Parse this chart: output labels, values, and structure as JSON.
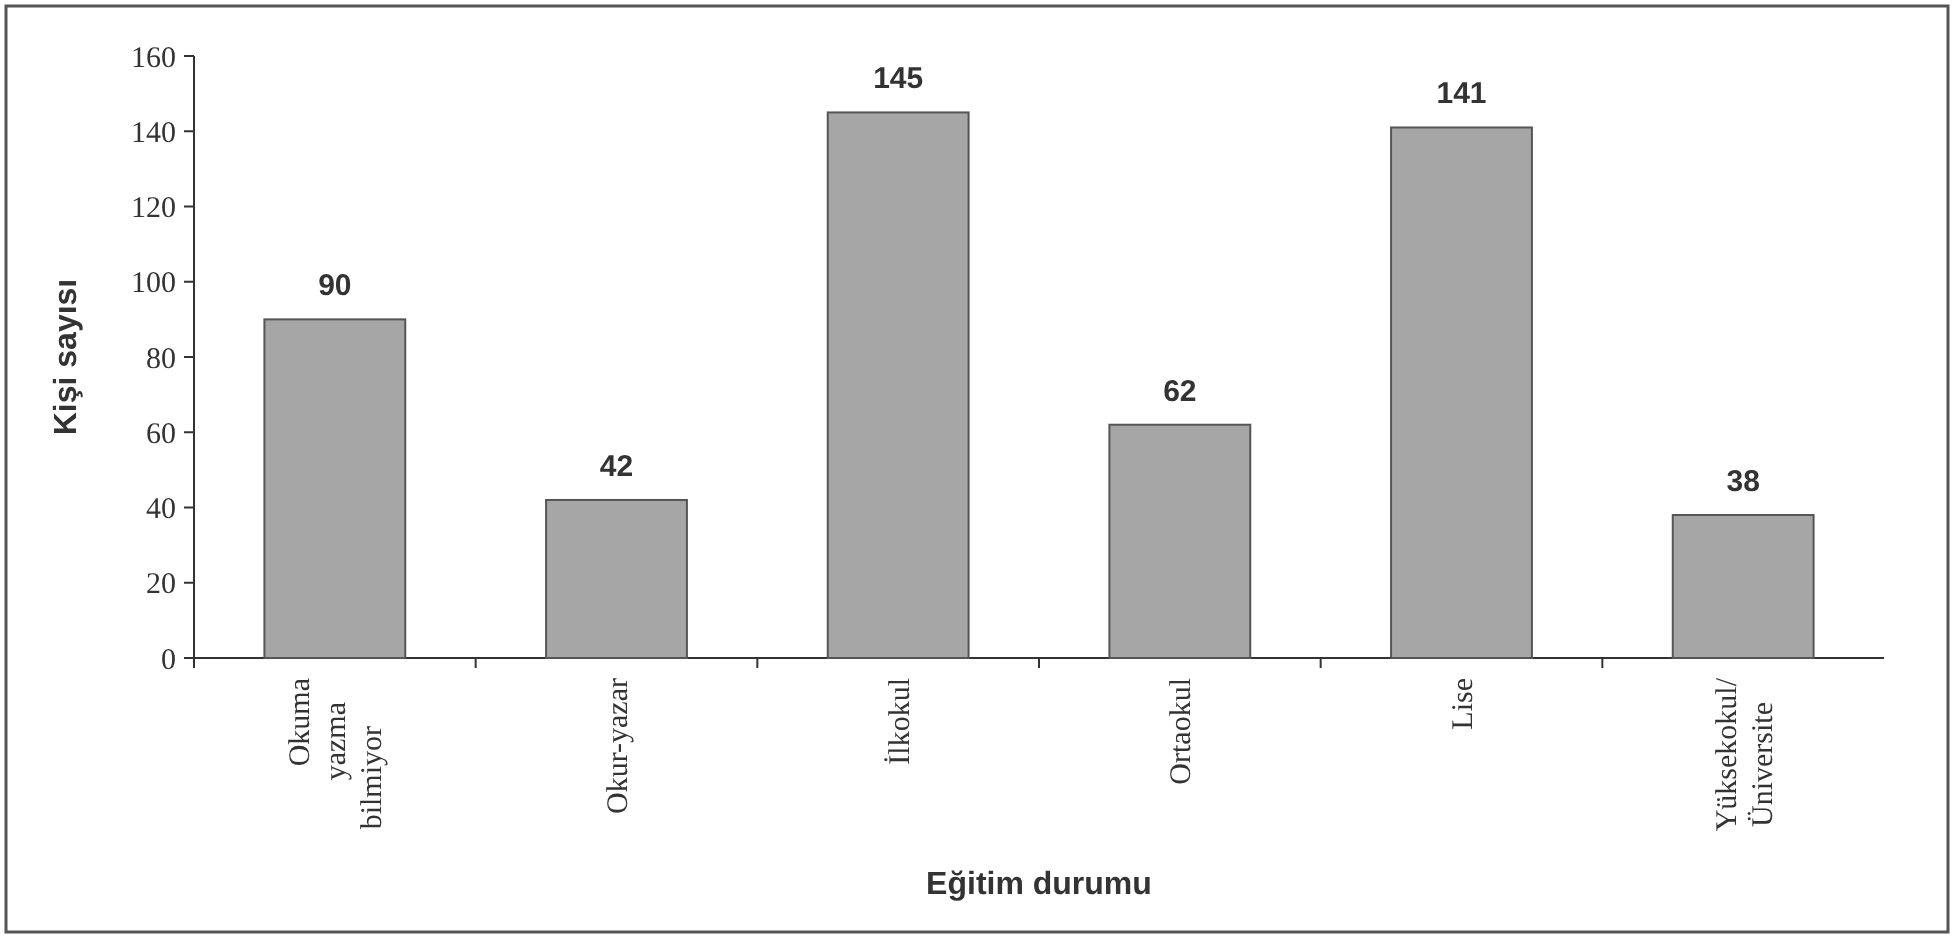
{
  "chart_data": {
    "type": "bar",
    "xlabel": "Eğitim durumu",
    "ylabel": "Kişi sayısı",
    "categories": [
      "Okuma yazma bilmiyor",
      "Okur-yazar",
      "İlkokul",
      "Ortaokul",
      "Lise",
      "Yüksekokul/ Üniversite"
    ],
    "values": [
      90,
      42,
      145,
      62,
      141,
      38
    ],
    "color": "#a6a6a6",
    "ylim": [
      0,
      160
    ],
    "yticks": [
      0,
      20,
      40,
      60,
      80,
      100,
      120,
      140,
      160
    ],
    "data_labels": true,
    "grid": false
  }
}
